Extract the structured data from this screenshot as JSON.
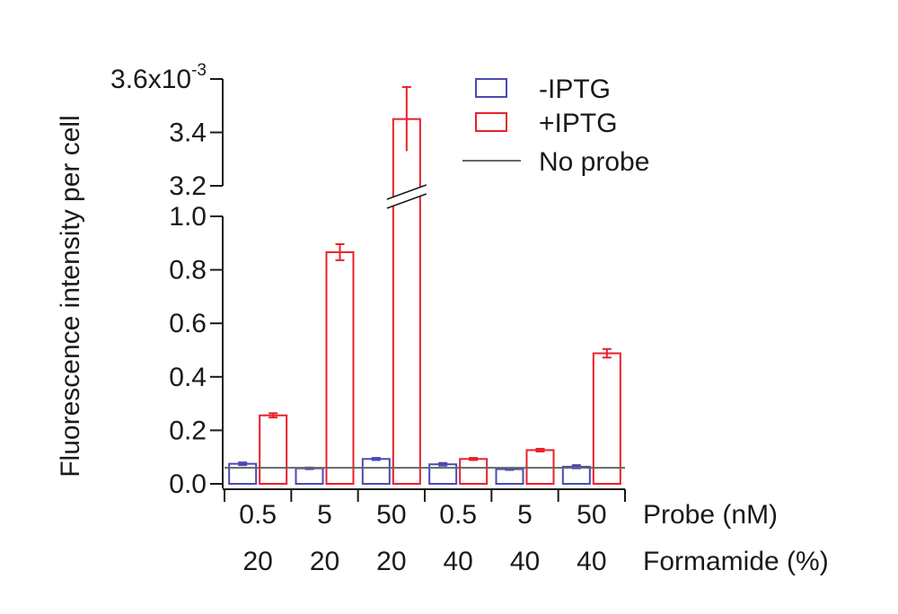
{
  "chart_data": {
    "type": "bar",
    "ylabel": "Fluorescence intensity per cell",
    "y_exponent_prefix": "3.6x10",
    "y_exponent": "-3",
    "y_broken_axis": true,
    "lower_ylim": [
      0,
      1.0
    ],
    "upper_ylim": [
      3.2,
      3.6
    ],
    "lower_ticks": [
      "0.0",
      "0.2",
      "0.4",
      "0.6",
      "0.8",
      "1.0"
    ],
    "lower_tick_values": [
      0.0,
      0.2,
      0.4,
      0.6,
      0.8,
      1.0
    ],
    "upper_ticks": [
      "3.2",
      "3.4"
    ],
    "upper_tick_values": [
      3.2,
      3.4
    ],
    "x_row_titles": [
      "Probe (nM)",
      "Formamide (%)"
    ],
    "categories": [
      {
        "probe": "0.5",
        "formamide": "20"
      },
      {
        "probe": "5",
        "formamide": "20"
      },
      {
        "probe": "50",
        "formamide": "20"
      },
      {
        "probe": "0.5",
        "formamide": "40"
      },
      {
        "probe": "5",
        "formamide": "40"
      },
      {
        "probe": "50",
        "formamide": "40"
      }
    ],
    "series": [
      {
        "name": "-IPTG",
        "color": "#4a4ab5",
        "values": [
          0.075,
          0.058,
          0.093,
          0.073,
          0.055,
          0.064
        ],
        "errors": [
          0.005,
          0.003,
          0.004,
          0.005,
          0.003,
          0.006
        ]
      },
      {
        "name": "+IPTG",
        "color": "#e8212a",
        "values": [
          0.256,
          0.866,
          3.45,
          0.093,
          0.126,
          0.488
        ],
        "errors": [
          0.008,
          0.03,
          0.12,
          0.004,
          0.005,
          0.016
        ]
      }
    ],
    "reference_line": {
      "name": "No probe",
      "value": 0.06,
      "color": "#666666"
    },
    "legend_position": "top-right",
    "grid": false
  }
}
